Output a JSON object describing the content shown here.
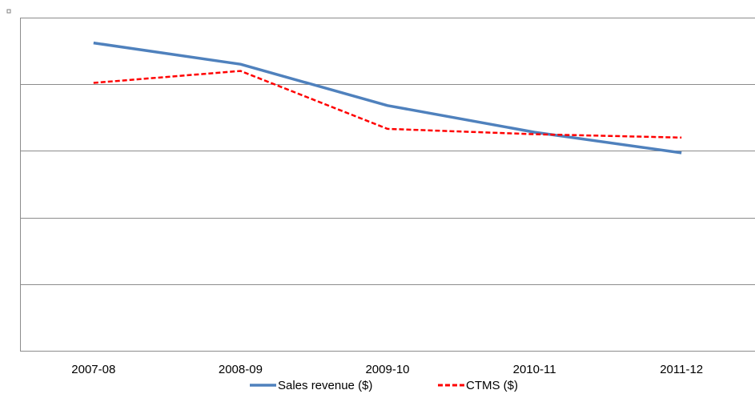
{
  "chart_data": {
    "type": "line",
    "categories": [
      "2007-08",
      "2008-09",
      "2009-10",
      "2010-11",
      "2011-12"
    ],
    "series": [
      {
        "name": "Sales revenue ($)",
        "color": "#4F81BD",
        "line_style": "solid",
        "values": [
          4.62,
          4.3,
          3.68,
          3.28,
          2.97
        ]
      },
      {
        "name": "CTMS ($)",
        "color": "#FF0000",
        "line_style": "dashed",
        "values": [
          4.02,
          4.2,
          3.33,
          3.25,
          3.2
        ]
      }
    ],
    "ylim": [
      0,
      5
    ],
    "y_gridlines": [
      1,
      2,
      3,
      4
    ],
    "y_tick_labels_shown": false,
    "grid": true,
    "legend_position": "bottom"
  }
}
